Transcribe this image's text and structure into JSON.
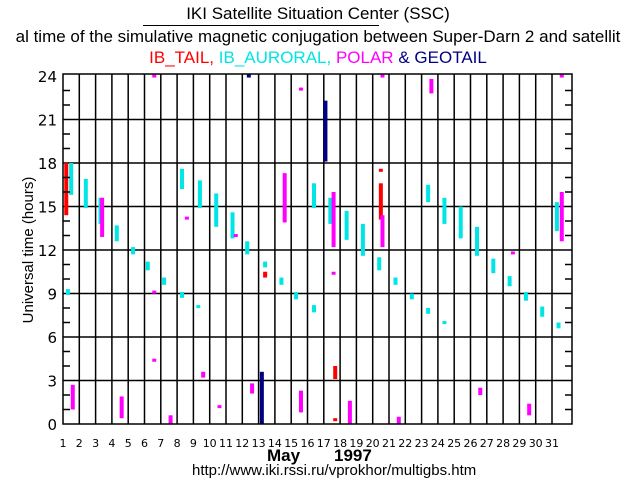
{
  "header": {
    "title": "IKI Satellite Situation Center (SSC)",
    "subtitle": "al time of the simulative magnetic conjugation between Super-Darn 2 and satellit",
    "legend": [
      {
        "label": "IB_TAIL,",
        "color": "#ff0000"
      },
      {
        "label": "IB_AURORAL,",
        "color": "#00e5e5"
      },
      {
        "label": "POLAR",
        "color": "#ff00ff"
      },
      {
        "label": "&",
        "color": "#000080"
      },
      {
        "label": "GEOTAIL",
        "color": "#000080"
      }
    ]
  },
  "footer": {
    "month": "May",
    "year": "1997",
    "url": "http://www.iki.rssi.ru/vprokhor/multigbs.htm"
  },
  "chart_data": {
    "type": "scatter",
    "title": "IKI Satellite Situation Center (SSC)",
    "xlabel": "May 1997",
    "ylabel": "Universal time (hours)",
    "xlim": [
      1,
      31.6
    ],
    "ylim": [
      0,
      24.1
    ],
    "x_ticks": [
      "1",
      "2",
      "3",
      "4",
      "5",
      "6",
      "7",
      "8",
      "9",
      "10",
      "11",
      "12",
      "13",
      "14",
      "15",
      "16",
      "17",
      "18",
      "19",
      "20",
      "21",
      "22",
      "23",
      "24",
      "25",
      "26",
      "27",
      "28",
      "29",
      "30",
      "31"
    ],
    "y_ticks": [
      "0",
      "3",
      "6",
      "9",
      "12",
      "15",
      "18",
      "21",
      "24"
    ],
    "grid": true,
    "series": [
      {
        "name": "IB_TAIL",
        "color": "#ff0000",
        "intervals": [
          {
            "day": 1.2,
            "start": 14.4,
            "end": 18.0
          },
          {
            "day": 13.4,
            "start": 10.1,
            "end": 10.5
          },
          {
            "day": 17.7,
            "start": 3.1,
            "end": 4.0
          },
          {
            "day": 17.7,
            "start": 0.3,
            "end": 0.4
          },
          {
            "day": 20.5,
            "start": 14.1,
            "end": 16.6
          },
          {
            "day": 20.5,
            "start": 17.4,
            "end": 17.6
          }
        ]
      },
      {
        "name": "IB_AURORAL",
        "color": "#00e5e5",
        "intervals": [
          {
            "day": 1.5,
            "start": 15.8,
            "end": 18.0
          },
          {
            "day": 2.4,
            "start": 14.9,
            "end": 16.9
          },
          {
            "day": 3.3,
            "start": 13.8,
            "end": 15.6
          },
          {
            "day": 4.3,
            "start": 12.6,
            "end": 13.7
          },
          {
            "day": 5.3,
            "start": 11.7,
            "end": 12.2
          },
          {
            "day": 6.2,
            "start": 10.6,
            "end": 11.2
          },
          {
            "day": 7.2,
            "start": 9.6,
            "end": 10.1
          },
          {
            "day": 8.3,
            "start": 8.7,
            "end": 9.1
          },
          {
            "day": 1.3,
            "start": 8.9,
            "end": 9.3
          },
          {
            "day": 8.3,
            "start": 16.2,
            "end": 17.6
          },
          {
            "day": 9.3,
            "start": 8.1,
            "end": 8.2
          },
          {
            "day": 9.4,
            "start": 14.9,
            "end": 16.8
          },
          {
            "day": 10.4,
            "start": 13.6,
            "end": 15.9
          },
          {
            "day": 11.4,
            "start": 12.8,
            "end": 14.6
          },
          {
            "day": 12.3,
            "start": 11.7,
            "end": 12.6
          },
          {
            "day": 13.4,
            "start": 10.8,
            "end": 11.2
          },
          {
            "day": 14.4,
            "start": 9.6,
            "end": 10.1
          },
          {
            "day": 15.3,
            "start": 8.6,
            "end": 9.1
          },
          {
            "day": 16.4,
            "start": 7.7,
            "end": 8.2
          },
          {
            "day": 16.4,
            "start": 14.9,
            "end": 16.6
          },
          {
            "day": 17.4,
            "start": 13.8,
            "end": 15.6
          },
          {
            "day": 18.4,
            "start": 12.7,
            "end": 14.7
          },
          {
            "day": 19.4,
            "start": 11.6,
            "end": 13.8
          },
          {
            "day": 20.4,
            "start": 10.6,
            "end": 11.5
          },
          {
            "day": 21.4,
            "start": 9.6,
            "end": 10.1
          },
          {
            "day": 22.4,
            "start": 8.6,
            "end": 9.0
          },
          {
            "day": 23.4,
            "start": 7.6,
            "end": 8.0
          },
          {
            "day": 23.4,
            "start": 15.3,
            "end": 16.5
          },
          {
            "day": 24.4,
            "start": 6.9,
            "end": 7.1
          },
          {
            "day": 24.4,
            "start": 13.8,
            "end": 15.6
          },
          {
            "day": 25.4,
            "start": 12.8,
            "end": 15.0
          },
          {
            "day": 26.4,
            "start": 11.6,
            "end": 13.6
          },
          {
            "day": 27.4,
            "start": 10.4,
            "end": 11.4
          },
          {
            "day": 28.4,
            "start": 9.5,
            "end": 10.2
          },
          {
            "day": 29.4,
            "start": 8.5,
            "end": 9.1
          },
          {
            "day": 30.4,
            "start": 7.4,
            "end": 8.1
          },
          {
            "day": 31.4,
            "start": 6.6,
            "end": 7.0
          },
          {
            "day": 31.3,
            "start": 13.3,
            "end": 15.3
          }
        ]
      },
      {
        "name": "POLAR",
        "color": "#ff00ff",
        "intervals": [
          {
            "day": 1.6,
            "start": 1.0,
            "end": 2.7
          },
          {
            "day": 3.4,
            "start": 12.9,
            "end": 15.6
          },
          {
            "day": 4.6,
            "start": 0.4,
            "end": 1.9
          },
          {
            "day": 6.6,
            "start": 4.4,
            "end": 4.5
          },
          {
            "day": 6.6,
            "start": 9.1,
            "end": 9.2
          },
          {
            "day": 6.6,
            "start": 24.0,
            "end": 24.1
          },
          {
            "day": 7.6,
            "start": 0.0,
            "end": 0.6
          },
          {
            "day": 8.6,
            "start": 14.2,
            "end": 14.3
          },
          {
            "day": 9.6,
            "start": 3.2,
            "end": 3.6
          },
          {
            "day": 10.6,
            "start": 1.2,
            "end": 1.3
          },
          {
            "day": 11.6,
            "start": 13.0,
            "end": 13.1
          },
          {
            "day": 12.6,
            "start": 2.1,
            "end": 2.8
          },
          {
            "day": 14.6,
            "start": 13.9,
            "end": 17.3
          },
          {
            "day": 15.6,
            "start": 0.8,
            "end": 2.3
          },
          {
            "day": 15.6,
            "start": 23.0,
            "end": 23.2
          },
          {
            "day": 17.6,
            "start": 12.2,
            "end": 16.0
          },
          {
            "day": 17.6,
            "start": 10.4,
            "end": 10.5
          },
          {
            "day": 18.6,
            "start": 0.0,
            "end": 1.6
          },
          {
            "day": 20.6,
            "start": 12.2,
            "end": 14.4
          },
          {
            "day": 20.6,
            "start": 23.9,
            "end": 24.1
          },
          {
            "day": 21.6,
            "start": 0.0,
            "end": 0.5
          },
          {
            "day": 23.6,
            "start": 22.8,
            "end": 23.8
          },
          {
            "day": 26.6,
            "start": 2.0,
            "end": 2.5
          },
          {
            "day": 28.6,
            "start": 11.8,
            "end": 11.9
          },
          {
            "day": 29.6,
            "start": 0.6,
            "end": 1.4
          },
          {
            "day": 31.6,
            "start": 12.6,
            "end": 16.0
          },
          {
            "day": 31.6,
            "start": 24.0,
            "end": 24.1
          }
        ]
      },
      {
        "name": "GEOTAIL",
        "color": "#000080",
        "intervals": [
          {
            "day": 12.4,
            "start": 24.0,
            "end": 24.1
          },
          {
            "day": 13.2,
            "start": 0.0,
            "end": 3.6
          },
          {
            "day": 17.1,
            "start": 18.1,
            "end": 22.3
          }
        ]
      }
    ]
  }
}
